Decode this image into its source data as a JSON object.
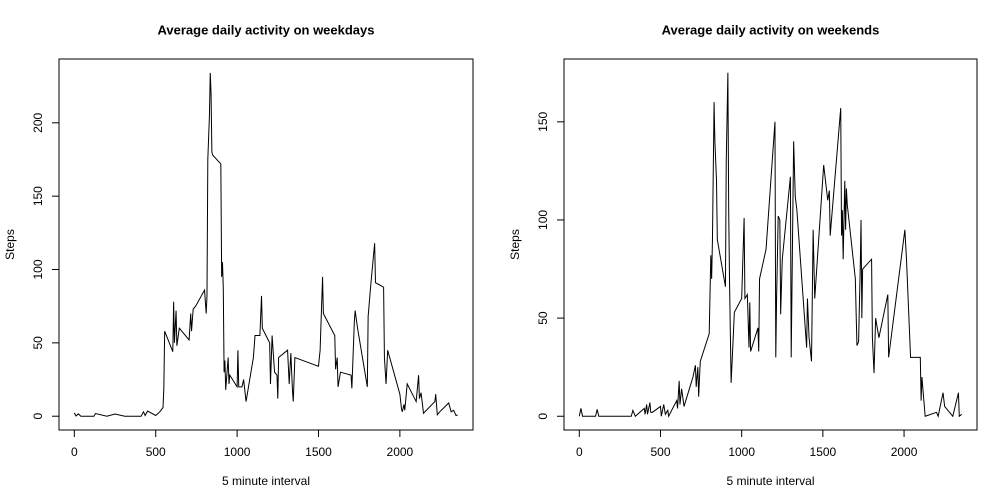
{
  "chart_data": [
    {
      "type": "line",
      "title": "Average daily activity on weekdays",
      "xlabel": "5 minute interval",
      "ylabel": "Steps",
      "color": "#000000",
      "x": [
        0,
        10,
        25,
        40,
        120,
        130,
        200,
        250,
        310,
        410,
        425,
        435,
        450,
        500,
        525,
        545,
        550,
        555,
        605,
        610,
        615,
        625,
        630,
        645,
        705,
        715,
        720,
        730,
        745,
        800,
        810,
        815,
        820,
        830,
        835,
        840,
        845,
        850,
        900,
        905,
        910,
        915,
        920,
        925,
        930,
        945,
        950,
        955,
        1000,
        1005,
        1010,
        1030,
        1040,
        1055,
        1100,
        1110,
        1140,
        1150,
        1155,
        1200,
        1205,
        1215,
        1230,
        1245,
        1250,
        1255,
        1310,
        1320,
        1330,
        1340,
        1345,
        1355,
        1500,
        1510,
        1525,
        1530,
        1600,
        1605,
        1615,
        1620,
        1635,
        1700,
        1705,
        1720,
        1725,
        1740,
        1800,
        1805,
        1820,
        1845,
        1850,
        1900,
        1905,
        1915,
        1925,
        2000,
        2010,
        2015,
        2025,
        2030,
        2045,
        2100,
        2115,
        2120,
        2130,
        2140,
        2145,
        2215,
        2220,
        2230,
        2245,
        2300,
        2315,
        2330,
        2345,
        2355
      ],
      "values": [
        2.3,
        0.2,
        1.6,
        0,
        0,
        1.8,
        0,
        1.5,
        0,
        0,
        3,
        0.5,
        3.5,
        0.5,
        3,
        6,
        20,
        58,
        44,
        78,
        50,
        72,
        48,
        60,
        52,
        70,
        58,
        73,
        75,
        86,
        70,
        82,
        175,
        205,
        234,
        220,
        180,
        178,
        172,
        95,
        105,
        88,
        30,
        38,
        18,
        40,
        22,
        28,
        20,
        45,
        20,
        20,
        25,
        10,
        40,
        55,
        55,
        82,
        60,
        50,
        22,
        55,
        30,
        28,
        12,
        40,
        45,
        22,
        43,
        18,
        10,
        40,
        34,
        45,
        95,
        70,
        55,
        32,
        40,
        20,
        30,
        28,
        19,
        64,
        72,
        60,
        20,
        68,
        88,
        118,
        91,
        88,
        40,
        22,
        45,
        15,
        5,
        3,
        8,
        4,
        22,
        10,
        28,
        12,
        16,
        7,
        2,
        10,
        15,
        1,
        3,
        9,
        3,
        4,
        0.5,
        0.8
      ],
      "xlim": [
        -94.2,
        2449.2
      ],
      "ylim": [
        -9.4,
        243.5
      ],
      "xticks": [
        0,
        500,
        1000,
        1500,
        2000
      ],
      "yticks": [
        0,
        50,
        100,
        150,
        200
      ]
    },
    {
      "type": "line",
      "title": "Average daily activity on weekends",
      "xlabel": "5 minute interval",
      "ylabel": "Steps",
      "color": "#000000",
      "x": [
        0,
        10,
        20,
        100,
        110,
        120,
        320,
        330,
        345,
        400,
        405,
        415,
        420,
        435,
        440,
        450,
        500,
        505,
        520,
        530,
        545,
        550,
        600,
        605,
        615,
        620,
        630,
        645,
        700,
        715,
        720,
        730,
        735,
        745,
        800,
        810,
        815,
        820,
        830,
        835,
        845,
        850,
        900,
        905,
        915,
        920,
        925,
        935,
        945,
        955,
        1000,
        1015,
        1020,
        1035,
        1045,
        1050,
        1055,
        1100,
        1105,
        1110,
        1150,
        1205,
        1210,
        1215,
        1225,
        1235,
        1240,
        1250,
        1300,
        1305,
        1320,
        1330,
        1340,
        1400,
        1405,
        1415,
        1430,
        1440,
        1450,
        1505,
        1530,
        1540,
        1545,
        1610,
        1615,
        1620,
        1625,
        1635,
        1640,
        1645,
        1650,
        1700,
        1705,
        1710,
        1720,
        1730,
        1735,
        1740,
        1745,
        1800,
        1805,
        1815,
        1825,
        1845,
        1900,
        1905,
        2005,
        2015,
        2040,
        2100,
        2105,
        2110,
        2120,
        2130,
        2200,
        2210,
        2240,
        2250,
        2300,
        2335,
        2340,
        2355
      ],
      "values": [
        0,
        4,
        0,
        0,
        3.5,
        0,
        0,
        3,
        0,
        4,
        1,
        6,
        1,
        7,
        2,
        2,
        5,
        0,
        6,
        1,
        3,
        0,
        8,
        4,
        18,
        6,
        14,
        5,
        20,
        26,
        15,
        25,
        10,
        28,
        42,
        82,
        70,
        90,
        160,
        140,
        120,
        90,
        66,
        130,
        175,
        105,
        70,
        17,
        35,
        53,
        60,
        101,
        60,
        62,
        35,
        58,
        33,
        45,
        33,
        70,
        85,
        150,
        30,
        60,
        102,
        100,
        52,
        80,
        122,
        30,
        140,
        112,
        105,
        35,
        60,
        40,
        28,
        95,
        60,
        128,
        110,
        115,
        92,
        157,
        92,
        105,
        80,
        120,
        95,
        116,
        108,
        70,
        52,
        36,
        38,
        75,
        100,
        50,
        75,
        80,
        40,
        22,
        50,
        40,
        62,
        30,
        95,
        80,
        30,
        30,
        8,
        20,
        10,
        0,
        2,
        0,
        12,
        5,
        0,
        12,
        0,
        1
      ],
      "xlim": [
        -94.2,
        2449.2
      ],
      "ylim": [
        -7,
        182
      ],
      "xticks": [
        0,
        500,
        1000,
        1500,
        2000
      ],
      "yticks": [
        0,
        50,
        100,
        150
      ]
    }
  ]
}
